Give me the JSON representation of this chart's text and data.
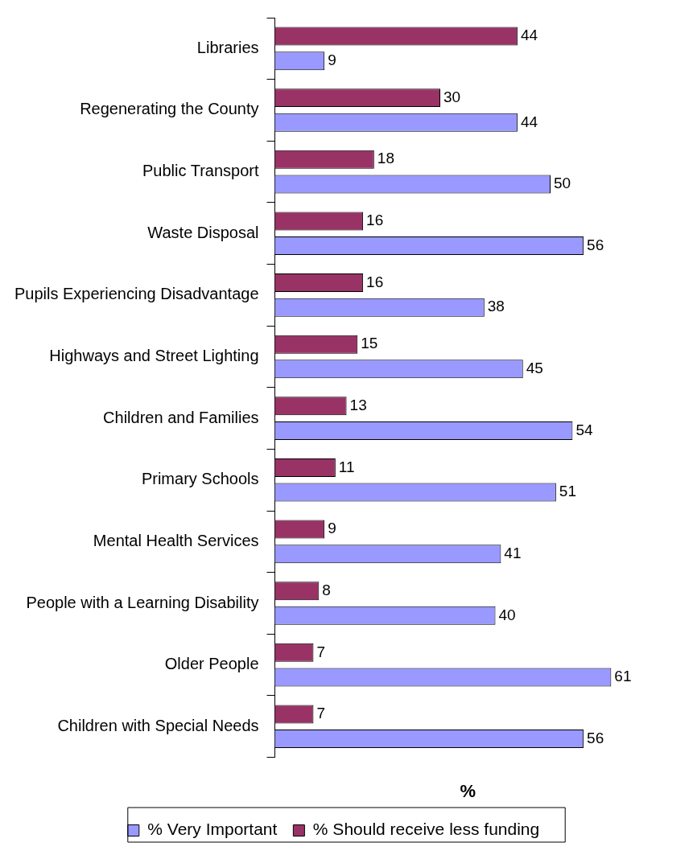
{
  "chart_data": {
    "type": "bar",
    "orientation": "horizontal",
    "xlabel": "%",
    "categories": [
      "Libraries",
      "Regenerating the County",
      "Public Transport",
      "Waste Disposal",
      "Pupils Experiencing Disadvantage",
      "Highways and Street Lighting",
      "Children and Families",
      "Primary Schools",
      "Mental Health Services",
      "People with a Learning Disability",
      "Older People",
      "Children with Special Needs"
    ],
    "series": [
      {
        "name": "% Very Important",
        "color": "#9999ff",
        "values": [
          9,
          44,
          50,
          56,
          38,
          45,
          54,
          51,
          41,
          40,
          61,
          56
        ]
      },
      {
        "name": "% Should receive less funding",
        "color": "#993366",
        "values": [
          44,
          30,
          18,
          16,
          16,
          15,
          13,
          11,
          9,
          8,
          7,
          7
        ]
      }
    ],
    "data_labels": true,
    "grid": false,
    "legend": "bottom",
    "tick_labels": "y"
  }
}
